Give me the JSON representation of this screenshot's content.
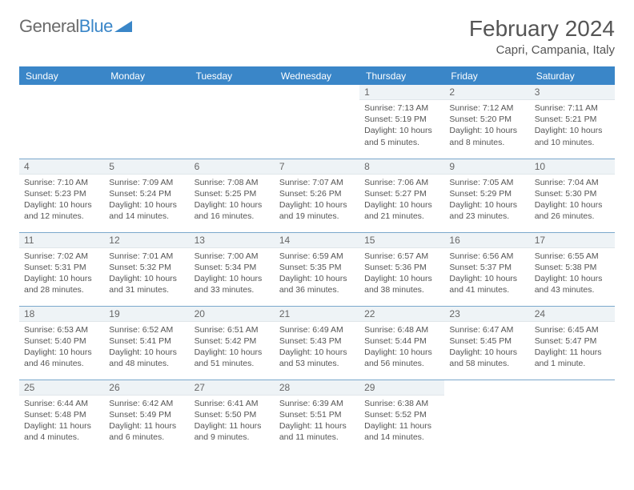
{
  "logo": {
    "text1": "General",
    "text2": "Blue"
  },
  "title": "February 2024",
  "location": "Capri, Campania, Italy",
  "colors": {
    "header_bg": "#3a86c8",
    "header_text": "#ffffff",
    "row_divider": "#7ba8cc",
    "daynum_bg": "#eef3f6",
    "body_text": "#555555"
  },
  "weekdays": [
    "Sunday",
    "Monday",
    "Tuesday",
    "Wednesday",
    "Thursday",
    "Friday",
    "Saturday"
  ],
  "weeks": [
    [
      {
        "n": "",
        "sr": "",
        "ss": "",
        "dl": ""
      },
      {
        "n": "",
        "sr": "",
        "ss": "",
        "dl": ""
      },
      {
        "n": "",
        "sr": "",
        "ss": "",
        "dl": ""
      },
      {
        "n": "",
        "sr": "",
        "ss": "",
        "dl": ""
      },
      {
        "n": "1",
        "sr": "Sunrise: 7:13 AM",
        "ss": "Sunset: 5:19 PM",
        "dl": "Daylight: 10 hours and 5 minutes."
      },
      {
        "n": "2",
        "sr": "Sunrise: 7:12 AM",
        "ss": "Sunset: 5:20 PM",
        "dl": "Daylight: 10 hours and 8 minutes."
      },
      {
        "n": "3",
        "sr": "Sunrise: 7:11 AM",
        "ss": "Sunset: 5:21 PM",
        "dl": "Daylight: 10 hours and 10 minutes."
      }
    ],
    [
      {
        "n": "4",
        "sr": "Sunrise: 7:10 AM",
        "ss": "Sunset: 5:23 PM",
        "dl": "Daylight: 10 hours and 12 minutes."
      },
      {
        "n": "5",
        "sr": "Sunrise: 7:09 AM",
        "ss": "Sunset: 5:24 PM",
        "dl": "Daylight: 10 hours and 14 minutes."
      },
      {
        "n": "6",
        "sr": "Sunrise: 7:08 AM",
        "ss": "Sunset: 5:25 PM",
        "dl": "Daylight: 10 hours and 16 minutes."
      },
      {
        "n": "7",
        "sr": "Sunrise: 7:07 AM",
        "ss": "Sunset: 5:26 PM",
        "dl": "Daylight: 10 hours and 19 minutes."
      },
      {
        "n": "8",
        "sr": "Sunrise: 7:06 AM",
        "ss": "Sunset: 5:27 PM",
        "dl": "Daylight: 10 hours and 21 minutes."
      },
      {
        "n": "9",
        "sr": "Sunrise: 7:05 AM",
        "ss": "Sunset: 5:29 PM",
        "dl": "Daylight: 10 hours and 23 minutes."
      },
      {
        "n": "10",
        "sr": "Sunrise: 7:04 AM",
        "ss": "Sunset: 5:30 PM",
        "dl": "Daylight: 10 hours and 26 minutes."
      }
    ],
    [
      {
        "n": "11",
        "sr": "Sunrise: 7:02 AM",
        "ss": "Sunset: 5:31 PM",
        "dl": "Daylight: 10 hours and 28 minutes."
      },
      {
        "n": "12",
        "sr": "Sunrise: 7:01 AM",
        "ss": "Sunset: 5:32 PM",
        "dl": "Daylight: 10 hours and 31 minutes."
      },
      {
        "n": "13",
        "sr": "Sunrise: 7:00 AM",
        "ss": "Sunset: 5:34 PM",
        "dl": "Daylight: 10 hours and 33 minutes."
      },
      {
        "n": "14",
        "sr": "Sunrise: 6:59 AM",
        "ss": "Sunset: 5:35 PM",
        "dl": "Daylight: 10 hours and 36 minutes."
      },
      {
        "n": "15",
        "sr": "Sunrise: 6:57 AM",
        "ss": "Sunset: 5:36 PM",
        "dl": "Daylight: 10 hours and 38 minutes."
      },
      {
        "n": "16",
        "sr": "Sunrise: 6:56 AM",
        "ss": "Sunset: 5:37 PM",
        "dl": "Daylight: 10 hours and 41 minutes."
      },
      {
        "n": "17",
        "sr": "Sunrise: 6:55 AM",
        "ss": "Sunset: 5:38 PM",
        "dl": "Daylight: 10 hours and 43 minutes."
      }
    ],
    [
      {
        "n": "18",
        "sr": "Sunrise: 6:53 AM",
        "ss": "Sunset: 5:40 PM",
        "dl": "Daylight: 10 hours and 46 minutes."
      },
      {
        "n": "19",
        "sr": "Sunrise: 6:52 AM",
        "ss": "Sunset: 5:41 PM",
        "dl": "Daylight: 10 hours and 48 minutes."
      },
      {
        "n": "20",
        "sr": "Sunrise: 6:51 AM",
        "ss": "Sunset: 5:42 PM",
        "dl": "Daylight: 10 hours and 51 minutes."
      },
      {
        "n": "21",
        "sr": "Sunrise: 6:49 AM",
        "ss": "Sunset: 5:43 PM",
        "dl": "Daylight: 10 hours and 53 minutes."
      },
      {
        "n": "22",
        "sr": "Sunrise: 6:48 AM",
        "ss": "Sunset: 5:44 PM",
        "dl": "Daylight: 10 hours and 56 minutes."
      },
      {
        "n": "23",
        "sr": "Sunrise: 6:47 AM",
        "ss": "Sunset: 5:45 PM",
        "dl": "Daylight: 10 hours and 58 minutes."
      },
      {
        "n": "24",
        "sr": "Sunrise: 6:45 AM",
        "ss": "Sunset: 5:47 PM",
        "dl": "Daylight: 11 hours and 1 minute."
      }
    ],
    [
      {
        "n": "25",
        "sr": "Sunrise: 6:44 AM",
        "ss": "Sunset: 5:48 PM",
        "dl": "Daylight: 11 hours and 4 minutes."
      },
      {
        "n": "26",
        "sr": "Sunrise: 6:42 AM",
        "ss": "Sunset: 5:49 PM",
        "dl": "Daylight: 11 hours and 6 minutes."
      },
      {
        "n": "27",
        "sr": "Sunrise: 6:41 AM",
        "ss": "Sunset: 5:50 PM",
        "dl": "Daylight: 11 hours and 9 minutes."
      },
      {
        "n": "28",
        "sr": "Sunrise: 6:39 AM",
        "ss": "Sunset: 5:51 PM",
        "dl": "Daylight: 11 hours and 11 minutes."
      },
      {
        "n": "29",
        "sr": "Sunrise: 6:38 AM",
        "ss": "Sunset: 5:52 PM",
        "dl": "Daylight: 11 hours and 14 minutes."
      },
      {
        "n": "",
        "sr": "",
        "ss": "",
        "dl": ""
      },
      {
        "n": "",
        "sr": "",
        "ss": "",
        "dl": ""
      }
    ]
  ]
}
